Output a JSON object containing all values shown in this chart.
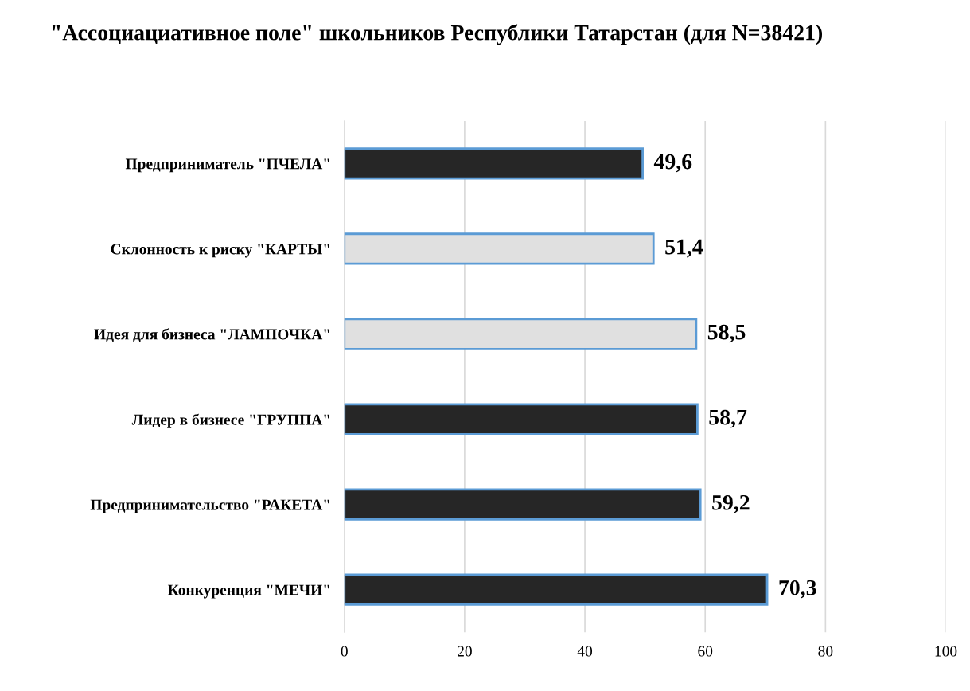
{
  "chart_data": {
    "type": "bar",
    "orientation": "horizontal",
    "title": "\"Ассоциациативное поле\" школьников Республики Татарстан (для N=38421)",
    "categories": [
      "Предприниматель \"ПЧЕЛА\"",
      "Склонность к риску \"КАРТЫ\"",
      "Идея для бизнеса \"ЛАМПОЧКА\"",
      "Лидер в бизнесе \"ГРУППА\"",
      "Предпринимательство \"РАКЕТА\"",
      "Конкуренция \"МЕЧИ\""
    ],
    "values": [
      49.6,
      51.4,
      58.5,
      58.7,
      59.2,
      70.3
    ],
    "value_labels": [
      "49,6",
      "51,4",
      "58,5",
      "58,7",
      "59,2",
      "70,3"
    ],
    "colors": [
      "#262626",
      "#e0e0e0",
      "#e0e0e0",
      "#262626",
      "#262626",
      "#262626"
    ],
    "xlim": [
      0,
      100
    ],
    "xticks": [
      0,
      20,
      40,
      60,
      80,
      100
    ],
    "grid": "x"
  }
}
